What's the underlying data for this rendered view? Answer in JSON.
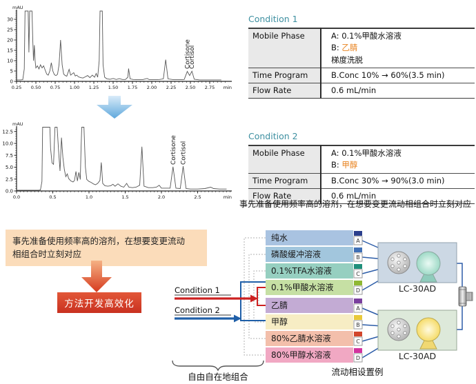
{
  "chart_data": [
    {
      "type": "line",
      "name": "chromatogram-condition1",
      "x_label": "min",
      "y_label": "mAU",
      "x_range": [
        0.25,
        2.95
      ],
      "y_range": [
        0,
        35
      ],
      "x_ticks": [
        "0.25",
        "0.50",
        "0.75",
        "1.00",
        "1.25",
        "1.50",
        "1.75",
        "2.00",
        "2.25",
        "2.50",
        "2.75"
      ],
      "y_ticks": [
        "0",
        "5",
        "10",
        "15",
        "20",
        "25",
        "30"
      ],
      "grid": false,
      "peaks": [
        {
          "name": "Cortisone",
          "x": 2.46,
          "height_mAU": 4.8
        },
        {
          "name": "Cortisol",
          "x": 2.52,
          "height_mAU": 4.9
        }
      ],
      "trace": [
        [
          0.25,
          0.7
        ],
        [
          0.3,
          0.7
        ],
        [
          0.33,
          0.8
        ],
        [
          0.35,
          6
        ],
        [
          0.36,
          36
        ],
        [
          0.4,
          36
        ],
        [
          0.41,
          14
        ],
        [
          0.42,
          36
        ],
        [
          0.45,
          36
        ],
        [
          0.46,
          20
        ],
        [
          0.47,
          10
        ],
        [
          0.48,
          17.5
        ],
        [
          0.49,
          10
        ],
        [
          0.5,
          6.5
        ],
        [
          0.52,
          7.5
        ],
        [
          0.54,
          6.0
        ],
        [
          0.56,
          8.0
        ],
        [
          0.58,
          6.5
        ],
        [
          0.6,
          7.5
        ],
        [
          0.62,
          5.5
        ],
        [
          0.64,
          3.5
        ],
        [
          0.66,
          3.0
        ],
        [
          0.68,
          5
        ],
        [
          0.7,
          9
        ],
        [
          0.72,
          5
        ],
        [
          0.74,
          3.2
        ],
        [
          0.76,
          2.8
        ],
        [
          0.78,
          3.4
        ],
        [
          0.8,
          8
        ],
        [
          0.82,
          20
        ],
        [
          0.84,
          8
        ],
        [
          0.86,
          3.5
        ],
        [
          0.88,
          2.8
        ],
        [
          0.9,
          2.5
        ],
        [
          0.93,
          5.8
        ],
        [
          0.95,
          3.0
        ],
        [
          0.97,
          3.6
        ],
        [
          0.99,
          4.2
        ],
        [
          1.01,
          2.6
        ],
        [
          1.03,
          3.0
        ],
        [
          1.05,
          2.2
        ],
        [
          1.08,
          1.8
        ],
        [
          1.11,
          1.6
        ],
        [
          1.14,
          2.2
        ],
        [
          1.17,
          2.8
        ],
        [
          1.2,
          1.8
        ],
        [
          1.23,
          3.0
        ],
        [
          1.26,
          2.0
        ],
        [
          1.28,
          3.8
        ],
        [
          1.3,
          2.0
        ],
        [
          1.32,
          10
        ],
        [
          1.33,
          36
        ],
        [
          1.36,
          36
        ],
        [
          1.37,
          8
        ],
        [
          1.39,
          2.0
        ],
        [
          1.42,
          1.2
        ],
        [
          1.46,
          1.0
        ],
        [
          1.5,
          1.4
        ],
        [
          1.54,
          0.9
        ],
        [
          1.58,
          1.3
        ],
        [
          1.62,
          0.9
        ],
        [
          1.66,
          0.9
        ],
        [
          1.69,
          2
        ],
        [
          1.7,
          6.2
        ],
        [
          1.72,
          1.2
        ],
        [
          1.76,
          0.9
        ],
        [
          1.82,
          0.8
        ],
        [
          1.88,
          0.8
        ],
        [
          1.94,
          1.4
        ],
        [
          1.97,
          0.8
        ],
        [
          2.05,
          0.8
        ],
        [
          2.1,
          0.9
        ],
        [
          2.15,
          1.2
        ],
        [
          2.18,
          10.5
        ],
        [
          2.21,
          1.2
        ],
        [
          2.28,
          0.8
        ],
        [
          2.35,
          0.8
        ],
        [
          2.42,
          0.9
        ],
        [
          2.46,
          4.8
        ],
        [
          2.49,
          2.8
        ],
        [
          2.52,
          4.9
        ],
        [
          2.55,
          1.0
        ],
        [
          2.62,
          0.7
        ],
        [
          2.7,
          0.7
        ],
        [
          2.8,
          0.7
        ],
        [
          2.9,
          0.7
        ]
      ]
    },
    {
      "type": "line",
      "name": "chromatogram-condition2",
      "x_label": "min",
      "y_label": "mAU",
      "x_range": [
        0.0,
        2.95
      ],
      "y_range": [
        0,
        13.5
      ],
      "x_ticks": [
        "0.0",
        "0.5",
        "1.0",
        "1.5",
        "2.0",
        "2.5"
      ],
      "y_ticks": [
        "0.0",
        "2.5",
        "5.0",
        "7.5",
        "10.0",
        "12.5"
      ],
      "grid": false,
      "peaks": [
        {
          "name": "Cortisone",
          "x": 2.16,
          "height_mAU": 5.1
        },
        {
          "name": "Cortisol",
          "x": 2.3,
          "height_mAU": 5.2
        }
      ],
      "trace": [
        [
          0.0,
          0.15
        ],
        [
          0.1,
          0.15
        ],
        [
          0.2,
          0.15
        ],
        [
          0.3,
          0.15
        ],
        [
          0.33,
          0.2
        ],
        [
          0.35,
          2
        ],
        [
          0.36,
          14
        ],
        [
          0.44,
          14
        ],
        [
          0.46,
          14
        ],
        [
          0.47,
          9
        ],
        [
          0.49,
          5.9
        ],
        [
          0.51,
          5.6
        ],
        [
          0.53,
          14
        ],
        [
          0.56,
          14
        ],
        [
          0.58,
          8.5
        ],
        [
          0.6,
          4.2
        ],
        [
          0.62,
          11.2
        ],
        [
          0.64,
          7
        ],
        [
          0.66,
          4.5
        ],
        [
          0.68,
          3.0
        ],
        [
          0.7,
          3.6
        ],
        [
          0.72,
          2.6
        ],
        [
          0.75,
          2.1
        ],
        [
          0.78,
          1.9
        ],
        [
          0.8,
          2.2
        ],
        [
          0.82,
          4.1
        ],
        [
          0.84,
          2.1
        ],
        [
          0.86,
          3.9
        ],
        [
          0.88,
          2.4
        ],
        [
          0.89,
          9
        ],
        [
          0.9,
          14
        ],
        [
          0.93,
          14
        ],
        [
          0.95,
          5
        ],
        [
          0.97,
          2.4
        ],
        [
          1.0,
          2.0
        ],
        [
          1.03,
          1.8
        ],
        [
          1.06,
          1.5
        ],
        [
          1.09,
          1.3
        ],
        [
          1.12,
          1.6
        ],
        [
          1.15,
          2.2
        ],
        [
          1.17,
          6.0
        ],
        [
          1.19,
          1.6
        ],
        [
          1.22,
          1.1
        ],
        [
          1.26,
          1.0
        ],
        [
          1.3,
          1.1
        ],
        [
          1.33,
          1.4
        ],
        [
          1.36,
          1.0
        ],
        [
          1.4,
          1.5
        ],
        [
          1.44,
          1.0
        ],
        [
          1.48,
          0.8
        ],
        [
          1.52,
          1.6
        ],
        [
          1.55,
          0.8
        ],
        [
          1.6,
          0.7
        ],
        [
          1.65,
          0.8
        ],
        [
          1.7,
          1.2
        ],
        [
          1.73,
          9.3
        ],
        [
          1.76,
          1.0
        ],
        [
          1.82,
          0.7
        ],
        [
          1.88,
          0.7
        ],
        [
          1.93,
          0.8
        ],
        [
          1.97,
          1.2
        ],
        [
          2.0,
          0.6
        ],
        [
          2.06,
          0.6
        ],
        [
          2.12,
          0.6
        ],
        [
          2.16,
          5.1
        ],
        [
          2.2,
          0.6
        ],
        [
          2.26,
          0.5
        ],
        [
          2.3,
          5.2
        ],
        [
          2.34,
          0.5
        ],
        [
          2.4,
          0.4
        ],
        [
          2.5,
          0.4
        ],
        [
          2.6,
          0.5
        ],
        [
          2.68,
          0.8
        ],
        [
          2.72,
          0.5
        ],
        [
          2.8,
          0.4
        ],
        [
          2.9,
          0.4
        ]
      ]
    }
  ],
  "condition1": {
    "title": "Condition 1",
    "mobile_phase_label": "Mobile Phase",
    "mobile_a": "A: 0.1%甲酸水溶液",
    "mobile_b_prefix": "B: ",
    "mobile_b_solvent": "乙腈",
    "mobile_note": "梯度洗脱",
    "time_program_label": "Time Program",
    "time_program_value": "B.Conc 10% → 60%(3.5 min)",
    "flow_rate_label": "Flow Rate",
    "flow_rate_value": "0.6 mL/min"
  },
  "condition2": {
    "title": "Condition 2",
    "mobile_phase_label": "Mobile Phase",
    "mobile_a": "A: 0.1%甲酸水溶液",
    "mobile_b_prefix": "B: ",
    "mobile_b_solvent": "甲醇",
    "time_program_label": "Time Program",
    "time_program_value": "B.Conc 30% → 90%(3.0 min)",
    "flow_rate_label": "Flow Rate",
    "flow_rate_value": "0.6 mL/min"
  },
  "note_line": "事先准备使用频率高的溶剂，在想要变更流动相组合时立刻对应",
  "note_box": {
    "line1": "事先准备使用频率高的溶剂，在想要变更流动",
    "line2": "相组合时立刻对应"
  },
  "red_box_label": "方法开发高效化",
  "flow": {
    "condition1_label": "Condition 1",
    "condition2_label": "Condition 2",
    "combine_label": "自由自在地组合",
    "example_label": "流动相设置例",
    "pump_label": "LC-30AD",
    "solvents_upper": [
      {
        "name": "纯水",
        "port": "A",
        "color": "#a9c3e1",
        "chip": "#2b3f8c"
      },
      {
        "name": "磷酸缓冲溶液",
        "port": "B",
        "color": "#a2c6dd",
        "chip": "#3f6fb5"
      },
      {
        "name": "0.1%TFA水溶液",
        "port": "C",
        "color": "#96cfc0",
        "chip": "#1f8f7a"
      },
      {
        "name": "0.1%甲酸水溶液",
        "port": "D",
        "color": "#c6e0a4",
        "chip": "#8fb832"
      }
    ],
    "solvents_lower": [
      {
        "name": "乙腈",
        "port": "A",
        "color": "#c3abd4",
        "chip": "#7a3f9e"
      },
      {
        "name": "甲醇",
        "port": "B",
        "color": "#f7edc4",
        "chip": "#e8c93a"
      },
      {
        "name": "80%乙腈水溶液",
        "port": "C",
        "color": "#f3bfab",
        "chip": "#d2452b"
      },
      {
        "name": "80%甲醇水溶液",
        "port": "D",
        "color": "#f1a8c3",
        "chip": "#d2329e"
      }
    ]
  },
  "colors": {
    "condition1_red": "#cc2020",
    "condition2_blue": "#1f5fa8",
    "highlight_orange": "#e8821e",
    "title_teal": "#3d8fa0",
    "tube_blue": "#2b5ca8"
  }
}
